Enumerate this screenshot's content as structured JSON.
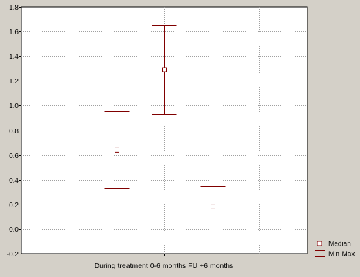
{
  "colors": {
    "background": "#d4d0c8",
    "plot_area": "#ffffff",
    "series": "#800000",
    "grid": "#a0a0a0",
    "text": "#000000"
  },
  "chart_data": {
    "type": "scatter",
    "title": "",
    "xlabel": "",
    "ylabel": "",
    "categories": [
      "During treatment",
      "0-6 months FU",
      "+6 months"
    ],
    "x_label_text": "During treatment  0-6 months FU  +6 months",
    "series": [
      {
        "name": "Median",
        "marker": "open-square",
        "values": [
          0.64,
          1.29,
          0.18
        ]
      },
      {
        "name": "Min-Max",
        "marker": "error-bar",
        "min": [
          0.33,
          0.93,
          0.01
        ],
        "max": [
          0.95,
          1.65,
          0.35
        ]
      }
    ],
    "ylim": [
      -0.2,
      1.8
    ],
    "y_ticks": [
      -0.2,
      0.0,
      0.2,
      0.4,
      0.6,
      0.8,
      1.0,
      1.2,
      1.4,
      1.6,
      1.8
    ],
    "y_tick_labels": [
      "-0.2",
      "0.0",
      "0.2",
      "0.4",
      "0.6",
      "0.8",
      "1.0",
      "1.2",
      "1.4",
      "1.6",
      "1.8"
    ],
    "grid": true,
    "legend": {
      "position": "bottom-right",
      "entries": [
        {
          "label": "Median",
          "symbol": "open-square"
        },
        {
          "label": "Min-Max",
          "symbol": "error-bar"
        }
      ]
    }
  }
}
